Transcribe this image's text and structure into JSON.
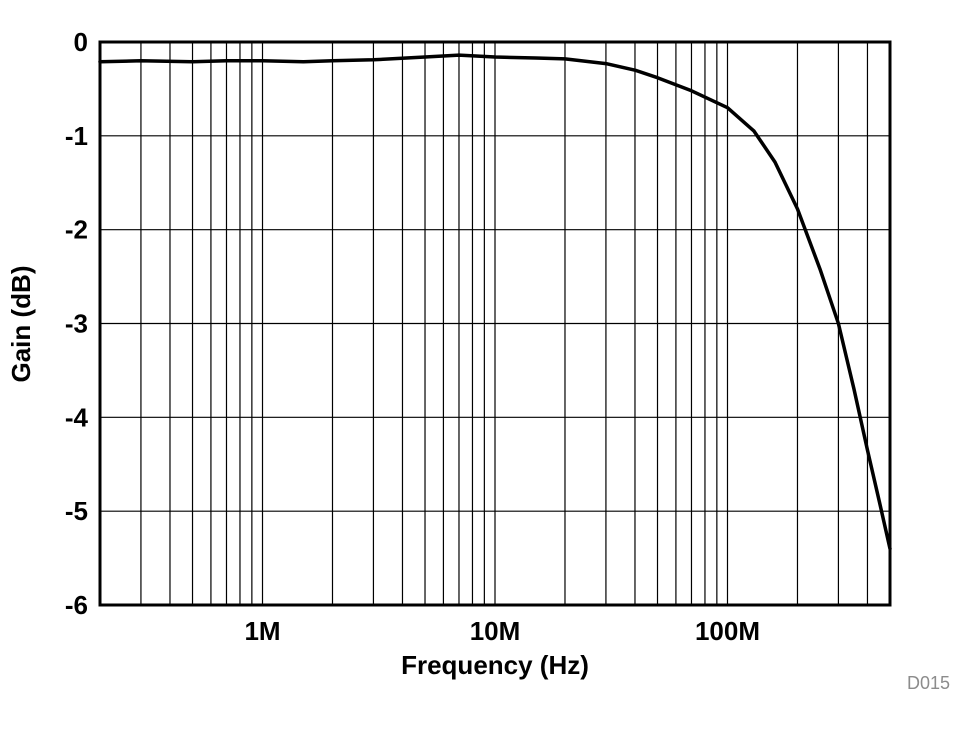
{
  "chart_data": {
    "type": "line",
    "title": "",
    "xlabel": "Frequency (Hz)",
    "ylabel": "Gain (dB)",
    "x_scale": "log",
    "xlim": [
      200000,
      500000000
    ],
    "ylim": [
      -6,
      0
    ],
    "grid": true,
    "x_ticks": [
      {
        "value": 1000000,
        "label": "1M"
      },
      {
        "value": 10000000,
        "label": "10M"
      },
      {
        "value": 100000000,
        "label": "100M"
      }
    ],
    "y_ticks": [
      {
        "value": 0,
        "label": "0"
      },
      {
        "value": -1,
        "label": "-1"
      },
      {
        "value": -2,
        "label": "-2"
      },
      {
        "value": -3,
        "label": "-3"
      },
      {
        "value": -4,
        "label": "-4"
      },
      {
        "value": -5,
        "label": "-5"
      },
      {
        "value": -6,
        "label": "-6"
      }
    ],
    "series": [
      {
        "name": "Gain",
        "x": [
          200000,
          300000,
          500000,
          700000,
          1000000,
          1500000,
          2000000,
          3000000,
          5000000,
          7000000,
          10000000,
          15000000,
          20000000,
          30000000,
          40000000,
          50000000,
          70000000,
          100000000,
          130000000,
          160000000,
          200000000,
          250000000,
          300000000,
          350000000,
          400000000,
          450000000,
          500000000
        ],
        "y": [
          -0.21,
          -0.2,
          -0.21,
          -0.2,
          -0.2,
          -0.21,
          -0.2,
          -0.19,
          -0.16,
          -0.14,
          -0.16,
          -0.17,
          -0.18,
          -0.23,
          -0.3,
          -0.38,
          -0.52,
          -0.7,
          -0.95,
          -1.28,
          -1.78,
          -2.42,
          -3.0,
          -3.7,
          -4.35,
          -4.9,
          -5.4
        ]
      }
    ],
    "line_color": "#000000",
    "grid_color": "#000000",
    "watermark": "D015",
    "watermark_color": "#8c8c8c"
  }
}
